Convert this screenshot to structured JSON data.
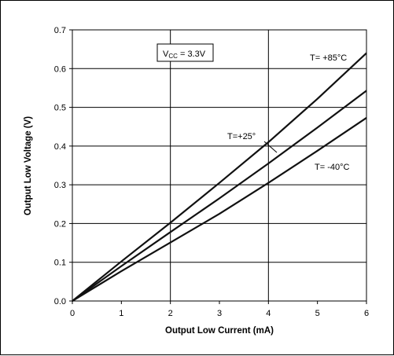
{
  "chart_data": {
    "type": "line",
    "xlabel": "Output Low Current (mA)",
    "ylabel": "Output Low Voltage (V)",
    "xlim": [
      0,
      6
    ],
    "ylim": [
      0,
      0.7
    ],
    "x_ticks": [
      "0",
      "1",
      "2",
      "3",
      "4",
      "5",
      "6"
    ],
    "y_ticks": [
      "0.0",
      "0.1",
      "0.2",
      "0.3",
      "0.4",
      "0.5",
      "0.6",
      "0.7"
    ],
    "grid": true,
    "condition_box": {
      "main": "V",
      "sub": "CC",
      "rest": " = 3.3V"
    },
    "series": [
      {
        "name": "T= +85°C",
        "x": [
          0,
          1,
          2,
          3,
          4,
          5,
          6
        ],
        "y": [
          0,
          0.102,
          0.202,
          0.305,
          0.41,
          0.522,
          0.64
        ]
      },
      {
        "name": "T=+25°",
        "x": [
          0,
          1,
          2,
          3,
          4,
          5,
          6
        ],
        "y": [
          0,
          0.09,
          0.178,
          0.265,
          0.355,
          0.448,
          0.543
        ]
      },
      {
        "name": "T= -40°C",
        "x": [
          0,
          1,
          2,
          3,
          4,
          5,
          6
        ],
        "y": [
          0,
          0.077,
          0.151,
          0.225,
          0.305,
          0.388,
          0.473
        ]
      }
    ],
    "series_color": "#111111",
    "grid_color": "#000000"
  }
}
